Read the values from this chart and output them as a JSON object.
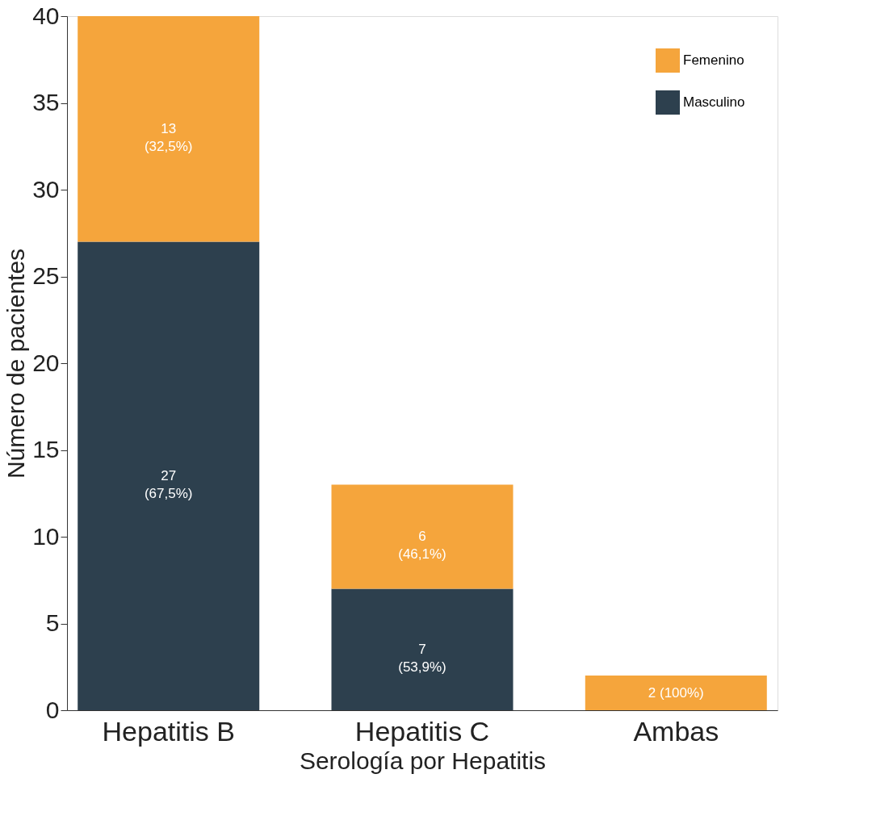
{
  "chart_data": {
    "type": "bar",
    "stacked": true,
    "xlabel": "Serología por Hepatitis",
    "ylabel": "Número de pacientes",
    "categories": [
      "Hepatitis B",
      "Hepatitis C",
      "Ambas"
    ],
    "series": [
      {
        "name": "Masculino",
        "color": "#2d404e",
        "values": [
          27,
          7,
          null
        ],
        "value_labels": [
          "27\n(67,5%)",
          "7\n(53,9%)",
          null
        ]
      },
      {
        "name": "Femenino",
        "color": "#f5a53c",
        "values": [
          13,
          6,
          2
        ],
        "value_labels": [
          "13\n(32,5%)",
          "6\n(46,1%)",
          "2 (100%)"
        ]
      }
    ],
    "ylim": [
      0,
      40
    ],
    "yticks": [
      0,
      5,
      10,
      15,
      20,
      25,
      30,
      35,
      40
    ],
    "grid": false,
    "legend": "top right"
  }
}
